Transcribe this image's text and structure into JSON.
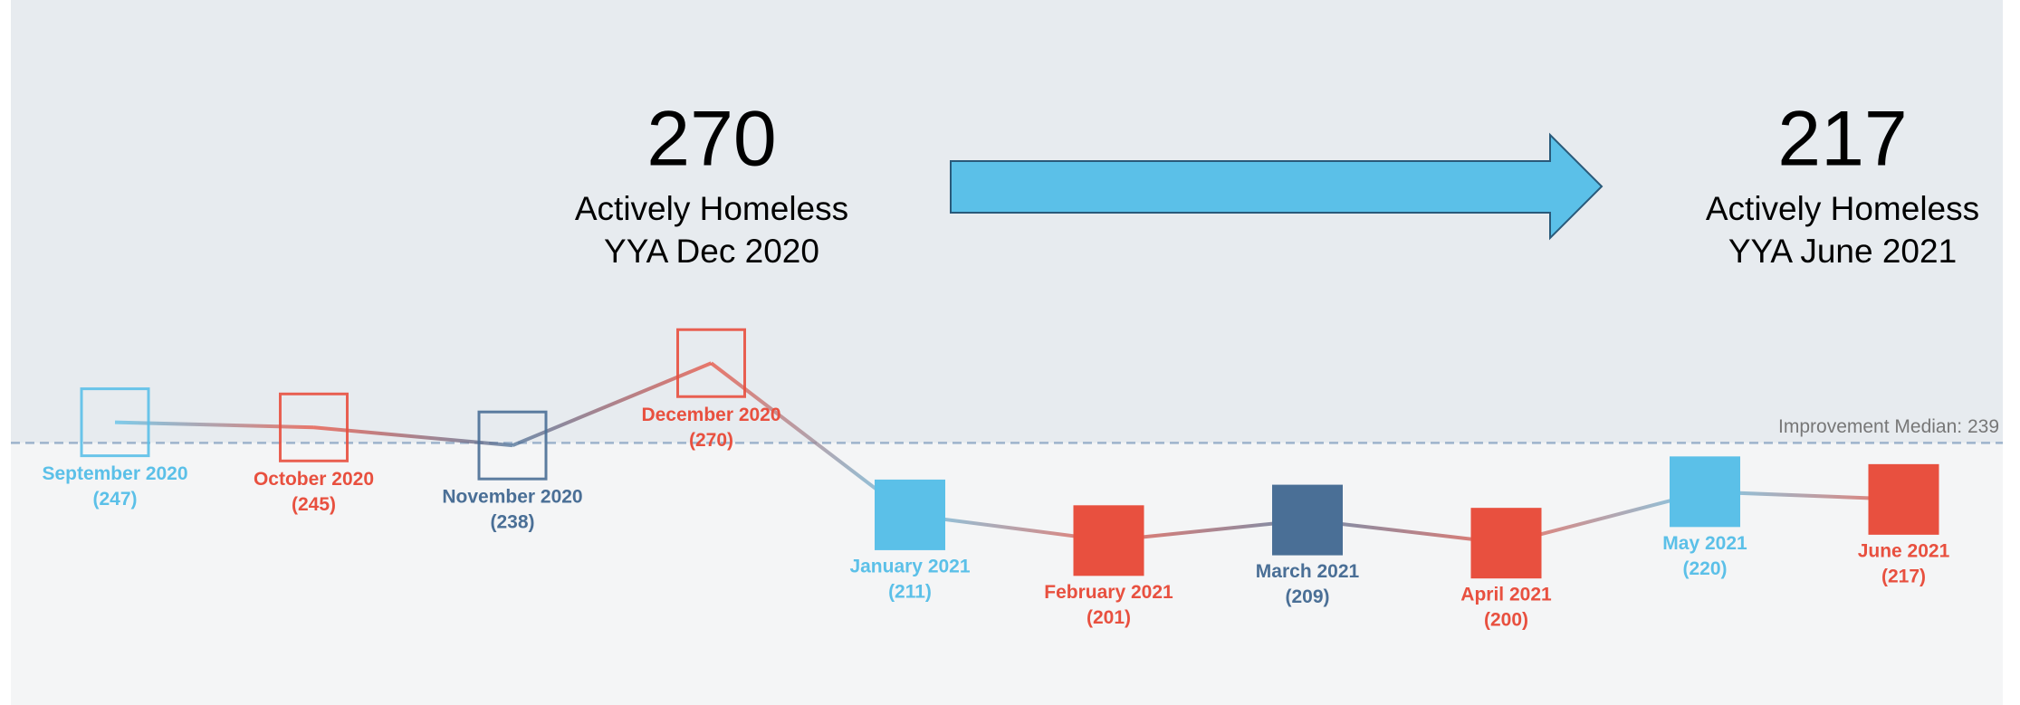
{
  "chart_data": {
    "type": "line",
    "categories": [
      "September 2020",
      "October 2020",
      "November 2020",
      "December 2020",
      "January 2021",
      "February 2021",
      "March 2021",
      "April 2021",
      "May 2021",
      "June 2021"
    ],
    "values": [
      247,
      245,
      238,
      270,
      211,
      201,
      209,
      200,
      220,
      217
    ],
    "value_labels": [
      "(247)",
      "(245)",
      "(238)",
      "(270)",
      "(211)",
      "(201)",
      "(209)",
      "(200)",
      "(220)",
      "(217)"
    ],
    "colors": [
      "#5bc0e8",
      "#e8503f",
      "#4a6f96",
      "#e8503f",
      "#5bc0e8",
      "#e8503f",
      "#4a6f96",
      "#e8503f",
      "#5bc0e8",
      "#e8503f"
    ],
    "marker_fill": [
      false,
      false,
      false,
      false,
      true,
      true,
      true,
      true,
      true,
      true
    ],
    "ylim": [
      180,
      300
    ],
    "median": 239,
    "median_label": "Improvement Median: 239",
    "callouts": [
      {
        "value": 270,
        "lines": [
          "Actively Homeless",
          "YYA Dec 2020"
        ]
      },
      {
        "value": 217,
        "lines": [
          "Actively Homeless",
          "YYA June 2021"
        ]
      }
    ]
  }
}
